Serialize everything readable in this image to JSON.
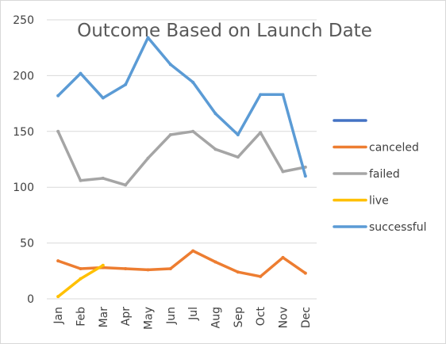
{
  "chart_data": {
    "type": "line",
    "title": "Outcome Based on Launch Date",
    "categories": [
      "Jan",
      "Feb",
      "Mar",
      "Apr",
      "May",
      "Jun",
      "Jul",
      "Aug",
      "Sep",
      "Oct",
      "Nov",
      "Dec"
    ],
    "y_ticks": [
      "0",
      "50",
      "100",
      "150",
      "200",
      "250"
    ],
    "ylim": [
      0,
      250
    ],
    "grid": "horizontal",
    "legend_position": "right",
    "legend": [
      {
        "name": "",
        "color": "#4472C4"
      },
      {
        "name": "canceled",
        "color": "#ED7D31"
      },
      {
        "name": "failed",
        "color": "#A5A5A5"
      },
      {
        "name": "live",
        "color": "#FFC000"
      },
      {
        "name": "successful",
        "color": "#5B9BD5"
      }
    ],
    "series": [
      {
        "name": "",
        "color": "#4472C4",
        "values": [
          null,
          null,
          null,
          null,
          null,
          null,
          null,
          null,
          null,
          null,
          null,
          null
        ]
      },
      {
        "name": "canceled",
        "color": "#ED7D31",
        "values": [
          34,
          27,
          28,
          27,
          26,
          27,
          43,
          33,
          24,
          20,
          37,
          23
        ]
      },
      {
        "name": "failed",
        "color": "#A5A5A5",
        "values": [
          150,
          106,
          108,
          102,
          126,
          147,
          150,
          134,
          127,
          149,
          114,
          118
        ]
      },
      {
        "name": "live",
        "color": "#FFC000",
        "values": [
          2,
          18,
          30,
          null,
          null,
          null,
          null,
          null,
          null,
          null,
          null,
          null
        ]
      },
      {
        "name": "successful",
        "color": "#5B9BD5",
        "values": [
          182,
          202,
          180,
          192,
          234,
          210,
          194,
          166,
          147,
          183,
          183,
          110
        ]
      }
    ]
  }
}
